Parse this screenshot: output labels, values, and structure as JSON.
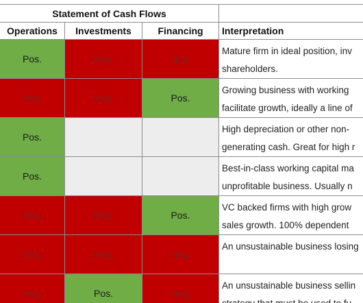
{
  "table": {
    "group_header": "Statement of Cash Flows",
    "columns": [
      "Operations",
      "Investments",
      "Financing",
      "Interpretation"
    ],
    "rows": [
      {
        "operations": "Pos.",
        "investments": "Neg.",
        "financing": "Neg.",
        "interp_line1": "Mature firm in ideal position, inv",
        "interp_line2": "shareholders."
      },
      {
        "operations": "Neg.",
        "investments": "Neg.",
        "financing": "Pos.",
        "interp_line1": "Growing business with working",
        "interp_line2": "facilitate growth, ideally a line of"
      },
      {
        "operations": "Pos.",
        "investments": "",
        "financing": "",
        "interp_line1": "High depreciation or other non-",
        "interp_line2": "generating cash. Great for high r"
      },
      {
        "operations": "Pos.",
        "investments": "",
        "financing": "",
        "interp_line1": "Best-in-class working capital ma",
        "interp_line2": "unprofitable business. Usually n"
      },
      {
        "operations": "Neg.",
        "investments": "Neg.",
        "financing": "Pos.",
        "interp_line1": "VC backed firms with high grow",
        "interp_line2": "sales growth. 100% dependent"
      },
      {
        "operations": "Neg.",
        "investments": "Neg.",
        "financing": "Neg.",
        "interp_line1": "An unsustainable business losing",
        "interp_line2": ""
      },
      {
        "operations": "Neg.",
        "investments": "Pos.",
        "financing": "Neg.",
        "interp_line1": "An unsustainable business sellin",
        "interp_line2": "strategy that must be used to fu"
      }
    ]
  },
  "colors": {
    "positive": "#70ad47",
    "negative": "#c00000",
    "blank": "#ededed",
    "grid": "#8c8c8c"
  }
}
